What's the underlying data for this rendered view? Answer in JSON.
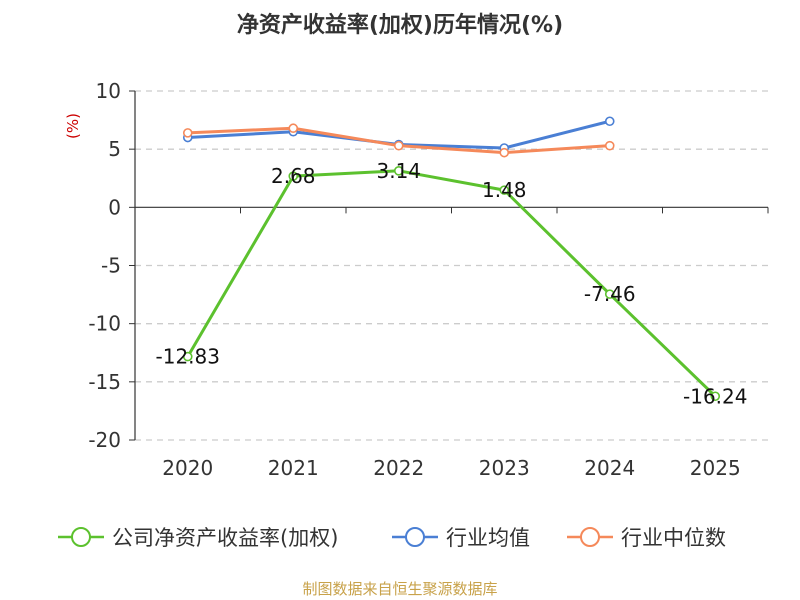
{
  "chart_data": {
    "type": "line",
    "title": "净资产收益率(加权)历年情况(%)",
    "ylabel": "(%)",
    "xlabel": "",
    "categories": [
      "2020",
      "2021",
      "2022",
      "2023",
      "2024",
      "2025"
    ],
    "ylim": [
      -20,
      10
    ],
    "yticks": [
      10,
      5,
      0,
      -5,
      -10,
      -15,
      -20
    ],
    "grid": true,
    "legend_position": "bottom",
    "series": [
      {
        "name": "公司净资产收益率(加权)",
        "color": "#5cc12e",
        "values": [
          -12.83,
          2.68,
          3.14,
          1.48,
          -7.46,
          -16.24
        ],
        "labels": [
          "-12.83",
          "2.68",
          "3.14",
          "1.48",
          "-7.46",
          "-16.24"
        ]
      },
      {
        "name": "行业均值",
        "color": "#4a7fd4",
        "values": [
          6.0,
          6.5,
          5.4,
          5.1,
          7.4,
          null
        ]
      },
      {
        "name": "行业中位数",
        "color": "#f5895a",
        "values": [
          6.4,
          6.8,
          5.3,
          4.7,
          5.3,
          null
        ]
      }
    ]
  },
  "source_text": "制图数据来自恒生聚源数据库"
}
